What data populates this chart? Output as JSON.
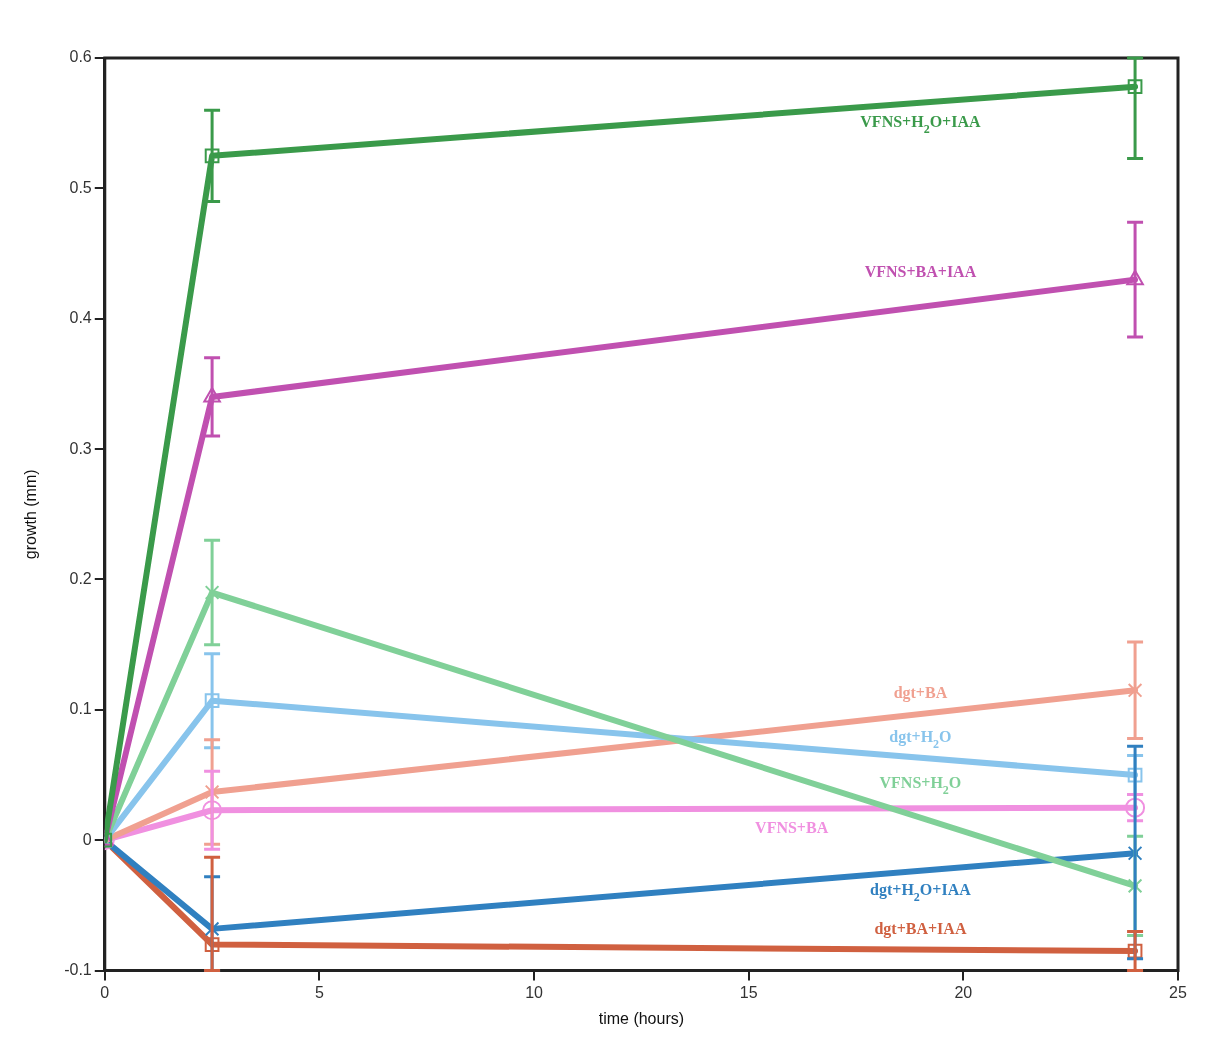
{
  "chart_data": {
    "type": "line",
    "xlabel": "time (hours)",
    "ylabel": "growth (mm)",
    "x": [
      0,
      2.5,
      24
    ],
    "xlim": [
      0,
      25
    ],
    "xticks": [
      0,
      5,
      10,
      15,
      20,
      25
    ],
    "ylim": [
      -0.1,
      0.6
    ],
    "yticks": [
      -0.1,
      0,
      0.1,
      0.2,
      0.3,
      0.4,
      0.5,
      0.6
    ],
    "grid": false,
    "legend": false,
    "line_style": "solid",
    "series": [
      {
        "name": "VFNS+H$_{2}$O+IAA",
        "color": "#3a9a4a",
        "marker": "square",
        "values": [
          0,
          0.525,
          0.578
        ],
        "errors": [
          null,
          0.035,
          [
            0.523,
            0.6
          ]
        ]
      },
      {
        "name": "VFNS+BA+IAA",
        "color": "#c050b0",
        "marker": "triangle",
        "values": [
          0,
          0.34,
          0.43
        ],
        "errors": [
          null,
          0.03,
          0.044
        ]
      },
      {
        "name": "VFNS+H$_{2}$O",
        "color": "#80d098",
        "marker": "cross",
        "values": [
          0,
          0.19,
          -0.035
        ],
        "errors": [
          null,
          0.04,
          0.038
        ]
      },
      {
        "name": "dgt+H$_{2}$O",
        "color": "#88c4ec",
        "marker": "square",
        "values": [
          0,
          0.107,
          0.05
        ],
        "errors": [
          null,
          0.036,
          0.015
        ]
      },
      {
        "name": "dgt+BA",
        "color": "#f0a090",
        "marker": "cross",
        "values": [
          0,
          0.037,
          0.115
        ],
        "errors": [
          null,
          0.04,
          0.037
        ]
      },
      {
        "name": "VFNS+BA",
        "color": "#f090e0",
        "marker": "circle",
        "values": [
          0,
          0.023,
          0.025
        ],
        "errors": [
          null,
          0.03,
          0.01
        ]
      },
      {
        "name": "dgt+H$_{2}$O+IAA",
        "color": "#3080c0",
        "marker": "cross",
        "values": [
          0,
          -0.068,
          -0.01
        ],
        "errors": [
          null,
          [
            -0.1,
            -0.028
          ],
          [
            -0.091,
            0.072
          ]
        ]
      },
      {
        "name": "dgt+BA+IAA",
        "color": "#d06040",
        "marker": "square",
        "values": [
          0,
          -0.08,
          -0.085
        ],
        "errors": [
          null,
          [
            -0.1,
            -0.013
          ],
          [
            -0.1,
            -0.07
          ]
        ]
      }
    ]
  }
}
